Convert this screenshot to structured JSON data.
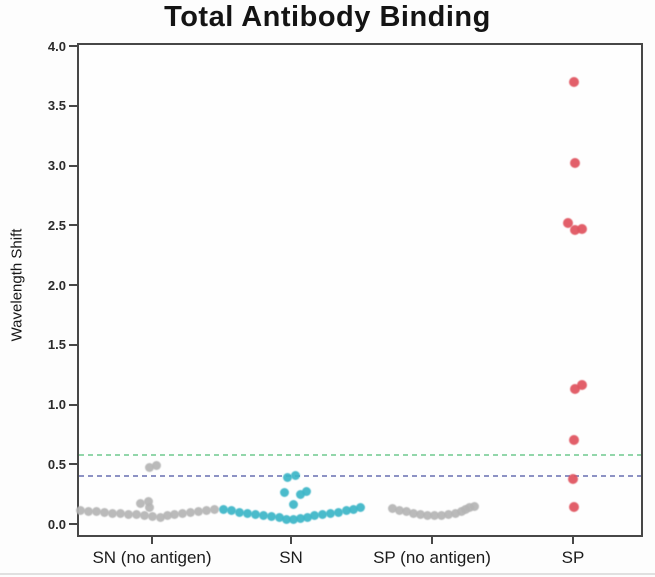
{
  "title": "Total Antibody Binding",
  "y_axis": {
    "label": "Wavelength Shift",
    "ticks": [
      {
        "label": "4.0",
        "value": 4.0
      },
      {
        "label": "3.5",
        "value": 3.5
      },
      {
        "label": "3.0",
        "value": 3.0
      },
      {
        "label": "2.5",
        "value": 2.5
      },
      {
        "label": "2.0",
        "value": 2.0
      },
      {
        "label": "1.5",
        "value": 1.5
      },
      {
        "label": "1.0",
        "value": 1.0
      },
      {
        "label": "0.5",
        "value": 0.5
      },
      {
        "label": "0.0",
        "value": 0.0
      }
    ]
  },
  "x_axis": {
    "categories": [
      "SN (no antigen)",
      "SN",
      "SP (no antigen)",
      "SP"
    ]
  },
  "colors": {
    "gray_points": "#b5b5b5",
    "cyan_points": "#3db6c8",
    "red_points": "#e0545f",
    "green_threshold": "#86d1a1",
    "blue_threshold": "#8086be",
    "spine": "#474747",
    "text": "#1c1c1c"
  },
  "chart_data": {
    "type": "scatter",
    "title": "Total Antibody Binding",
    "xlabel": "",
    "ylabel": "Wavelength Shift",
    "ylim": [
      -0.11,
      4.03
    ],
    "grid": false,
    "legend": false,
    "categories": [
      "SN (no antigen)",
      "SN",
      "SP (no antigen)",
      "SP"
    ],
    "series": [
      {
        "name": "SN (no antigen)",
        "color": "#b5b5b5",
        "dot_size": 9,
        "points": [
          {
            "dx": -72,
            "y": 0.115
          },
          {
            "dx": -64,
            "y": 0.108
          },
          {
            "dx": -56,
            "y": 0.102
          },
          {
            "dx": -48,
            "y": 0.097
          },
          {
            "dx": -40,
            "y": 0.092
          },
          {
            "dx": -32,
            "y": 0.087
          },
          {
            "dx": -24,
            "y": 0.082
          },
          {
            "dx": -16,
            "y": 0.077
          },
          {
            "dx": -8,
            "y": 0.07
          },
          {
            "dx": 0,
            "y": 0.062
          },
          {
            "dx": 8,
            "y": 0.058
          },
          {
            "dx": 15,
            "y": 0.068
          },
          {
            "dx": 22,
            "y": 0.078
          },
          {
            "dx": 30,
            "y": 0.088
          },
          {
            "dx": 38,
            "y": 0.097
          },
          {
            "dx": 46,
            "y": 0.105
          },
          {
            "dx": 54,
            "y": 0.113
          },
          {
            "dx": 62,
            "y": 0.122
          },
          {
            "dx": -12,
            "y": 0.175
          },
          {
            "dx": -4,
            "y": 0.185
          },
          {
            "dx": -3,
            "y": 0.135
          },
          {
            "dx": -3,
            "y": 0.47
          },
          {
            "dx": 4,
            "y": 0.49
          }
        ]
      },
      {
        "name": "SN",
        "color": "#3db6c8",
        "dot_size": 9,
        "points": [
          {
            "dx": -68,
            "y": 0.12
          },
          {
            "dx": -60,
            "y": 0.11
          },
          {
            "dx": -52,
            "y": 0.1
          },
          {
            "dx": -44,
            "y": 0.09
          },
          {
            "dx": -36,
            "y": 0.082
          },
          {
            "dx": -28,
            "y": 0.073
          },
          {
            "dx": -20,
            "y": 0.063
          },
          {
            "dx": -12,
            "y": 0.052
          },
          {
            "dx": -5,
            "y": 0.04
          },
          {
            "dx": 2,
            "y": 0.035
          },
          {
            "dx": 9,
            "y": 0.048
          },
          {
            "dx": 16,
            "y": 0.058
          },
          {
            "dx": 23,
            "y": 0.068
          },
          {
            "dx": 31,
            "y": 0.078
          },
          {
            "dx": 39,
            "y": 0.088
          },
          {
            "dx": 47,
            "y": 0.098
          },
          {
            "dx": 55,
            "y": 0.11
          },
          {
            "dx": 62,
            "y": 0.122
          },
          {
            "dx": 69,
            "y": 0.14
          },
          {
            "dx": 2,
            "y": 0.16
          },
          {
            "dx": -7,
            "y": 0.26
          },
          {
            "dx": 9,
            "y": 0.245
          },
          {
            "dx": 15,
            "y": 0.272
          },
          {
            "dx": -4,
            "y": 0.39
          },
          {
            "dx": 4,
            "y": 0.41
          }
        ]
      },
      {
        "name": "SP (no antigen)",
        "color": "#b5b5b5",
        "dot_size": 9,
        "points": [
          {
            "dx": -40,
            "y": 0.13
          },
          {
            "dx": -33,
            "y": 0.115
          },
          {
            "dx": -26,
            "y": 0.103
          },
          {
            "dx": -19,
            "y": 0.092
          },
          {
            "dx": -12,
            "y": 0.082
          },
          {
            "dx": -5,
            "y": 0.073
          },
          {
            "dx": 2,
            "y": 0.07
          },
          {
            "dx": 9,
            "y": 0.073
          },
          {
            "dx": 16,
            "y": 0.08
          },
          {
            "dx": 23,
            "y": 0.092
          },
          {
            "dx": 29,
            "y": 0.105
          },
          {
            "dx": 33,
            "y": 0.118
          },
          {
            "dx": 37,
            "y": 0.135
          },
          {
            "dx": 42,
            "y": 0.15
          }
        ]
      },
      {
        "name": "SP",
        "color": "#e0545f",
        "dot_size": 10,
        "points": [
          {
            "dx": 1,
            "y": 3.7
          },
          {
            "dx": 2,
            "y": 3.02
          },
          {
            "dx": -5,
            "y": 2.52
          },
          {
            "dx": 2,
            "y": 2.46
          },
          {
            "dx": 9,
            "y": 2.47
          },
          {
            "dx": 9,
            "y": 1.16
          },
          {
            "dx": 2,
            "y": 1.13
          },
          {
            "dx": 1,
            "y": 0.7
          },
          {
            "dx": 0,
            "y": 0.38
          },
          {
            "dx": 1,
            "y": 0.14
          }
        ]
      }
    ],
    "reference_lines": [
      {
        "name": "upper-threshold",
        "y": 0.58,
        "color": "#86d1a1",
        "style": "dashed"
      },
      {
        "name": "lower-threshold",
        "y": 0.4,
        "color": "#8086be",
        "style": "dashed"
      }
    ]
  }
}
